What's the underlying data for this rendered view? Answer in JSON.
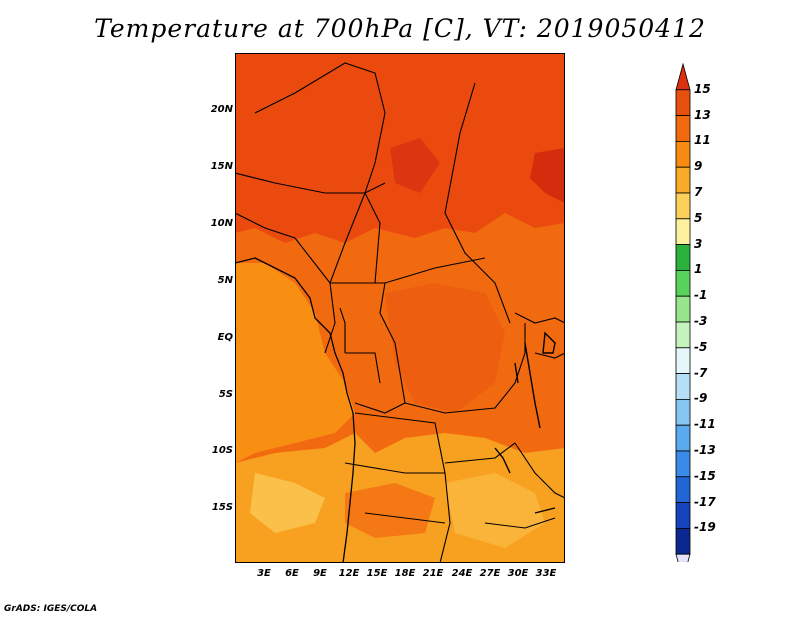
{
  "title": "Temperature at 700hPa [C], VT: 2019050412",
  "credit": "GrADS: IGES/COLA",
  "map": {
    "lat_ticks": [
      "20N",
      "15N",
      "10N",
      "5N",
      "EQ",
      "5S",
      "10S",
      "15S"
    ],
    "lon_ticks": [
      "3E",
      "6E",
      "9E",
      "12E",
      "15E",
      "18E",
      "21E",
      "24E",
      "27E",
      "30E",
      "33E"
    ],
    "field_colors": {
      "deep_red": "#d42c0c",
      "red_orange": "#ea4a0e",
      "orange": "#f26a10",
      "orange_mid": "#f78a12",
      "light_orange": "#f8a020",
      "pale": "#fbc04a",
      "border": "#000000"
    }
  },
  "colorbar": {
    "labels": [
      "15",
      "13",
      "11",
      "9",
      "7",
      "5",
      "3",
      "1",
      "-1",
      "-3",
      "-5",
      "-7",
      "-9",
      "-11",
      "-13",
      "-15",
      "-17",
      "-19"
    ],
    "colors": [
      "#dc3010",
      "#e8500f",
      "#f06a10",
      "#f78b12",
      "#f9aa28",
      "#fbd15c",
      "#fdf1a0",
      "#2cb13c",
      "#58d25a",
      "#98e68c",
      "#c6f2be",
      "#e6f7fb",
      "#b4dff7",
      "#86c6f2",
      "#5aaaee",
      "#3a8ae8",
      "#2266d6",
      "#1444bc",
      "#0a2890",
      "#e4e4f8"
    ]
  }
}
